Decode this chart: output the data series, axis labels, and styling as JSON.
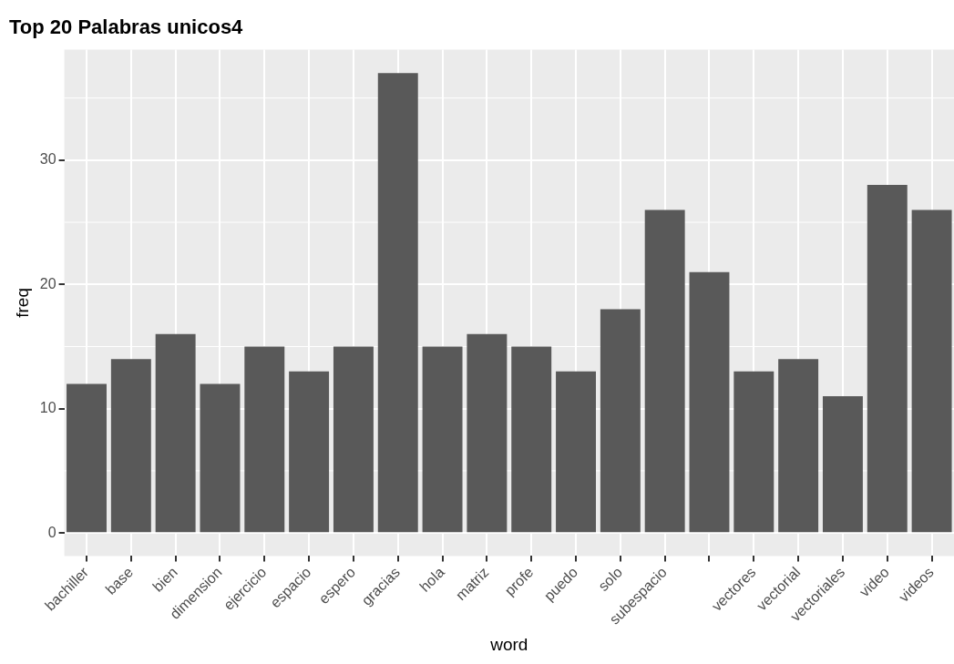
{
  "chart_data": {
    "type": "bar",
    "title": "Top 20 Palabras unicos4",
    "xlabel": "word",
    "ylabel": "freq",
    "categories": [
      "bachiller",
      "base",
      "bien",
      "dimension",
      "ejercicio",
      "espacio",
      "espero",
      "gracias",
      "hola",
      "matriz",
      "profe",
      "puedo",
      "solo",
      "subespacio",
      null,
      "vectores",
      "vectorial",
      "vectoriales",
      "video",
      "videos"
    ],
    "values": [
      12,
      14,
      16,
      12,
      15,
      13,
      15,
      37,
      15,
      16,
      15,
      13,
      18,
      26,
      21,
      13,
      14,
      11,
      28,
      26
    ],
    "color": "#595959",
    "ylim": [
      -1.85,
      38.9
    ],
    "yticks": [
      0,
      10,
      20,
      30
    ],
    "grid": true,
    "legend": false
  }
}
